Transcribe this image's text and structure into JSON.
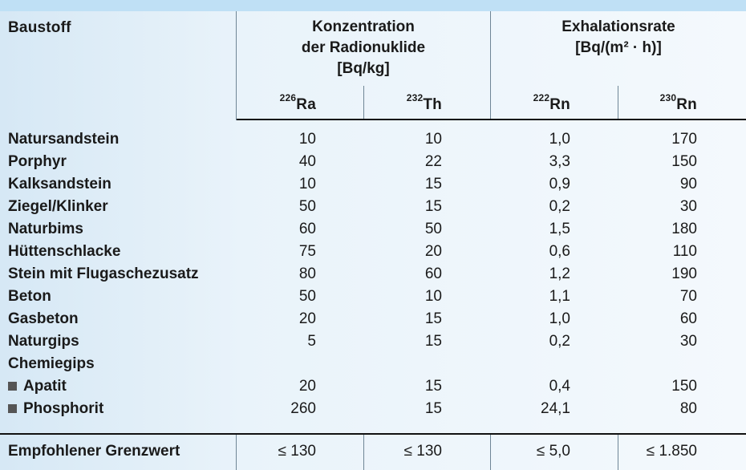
{
  "table": {
    "header": {
      "col_material": "Baustoff",
      "group_concentration": {
        "line1": "Konzentration",
        "line2": "der Radionuklide",
        "unit": "[Bq/kg]"
      },
      "group_exhalation": {
        "line1": "Exhalationsrate",
        "unit": "[Bq/(m² · h)]"
      },
      "sub": [
        {
          "sup": "226",
          "sym": "Ra"
        },
        {
          "sup": "232",
          "sym": "Th"
        },
        {
          "sup": "222",
          "sym": "Rn"
        },
        {
          "sup": "230",
          "sym": "Rn"
        }
      ]
    },
    "rows": [
      {
        "name": "Natursandstein",
        "ra": "10",
        "th": "10",
        "rn222": "1,0",
        "rn230": "170"
      },
      {
        "name": "Porphyr",
        "ra": "40",
        "th": "22",
        "rn222": "3,3",
        "rn230": "150"
      },
      {
        "name": "Kalksandstein",
        "ra": "10",
        "th": "15",
        "rn222": "0,9",
        "rn230": "90"
      },
      {
        "name": "Ziegel/Klinker",
        "ra": "50",
        "th": "15",
        "rn222": "0,2",
        "rn230": "30"
      },
      {
        "name": "Naturbims",
        "ra": "60",
        "th": "50",
        "rn222": "1,5",
        "rn230": "180"
      },
      {
        "name": "Hüttenschlacke",
        "ra": "75",
        "th": "20",
        "rn222": "0,6",
        "rn230": "110"
      },
      {
        "name": "Stein mit Flugaschezusatz",
        "ra": "80",
        "th": "60",
        "rn222": "1,2",
        "rn230": "190"
      },
      {
        "name": "Beton",
        "ra": "50",
        "th": "10",
        "rn222": "1,1",
        "rn230": "70"
      },
      {
        "name": "Gasbeton",
        "ra": "20",
        "th": "15",
        "rn222": "1,0",
        "rn230": "60"
      },
      {
        "name": "Naturgips",
        "ra": "5",
        "th": "15",
        "rn222": "0,2",
        "rn230": "30"
      },
      {
        "name": "Chemiegips",
        "ra": "",
        "th": "",
        "rn222": "",
        "rn230": ""
      },
      {
        "name": "Apatit",
        "ra": "20",
        "th": "15",
        "rn222": "0,4",
        "rn230": "150"
      },
      {
        "name": "Phosphorit",
        "ra": "260",
        "th": "15",
        "rn222": "24,1",
        "rn230": "80"
      }
    ],
    "footer": {
      "name": "Empfohlener Grenzwert",
      "ra": "≤ 130",
      "th": "≤ 130",
      "rn222": "≤ 5,0",
      "rn230": "≤ 1.850"
    }
  }
}
